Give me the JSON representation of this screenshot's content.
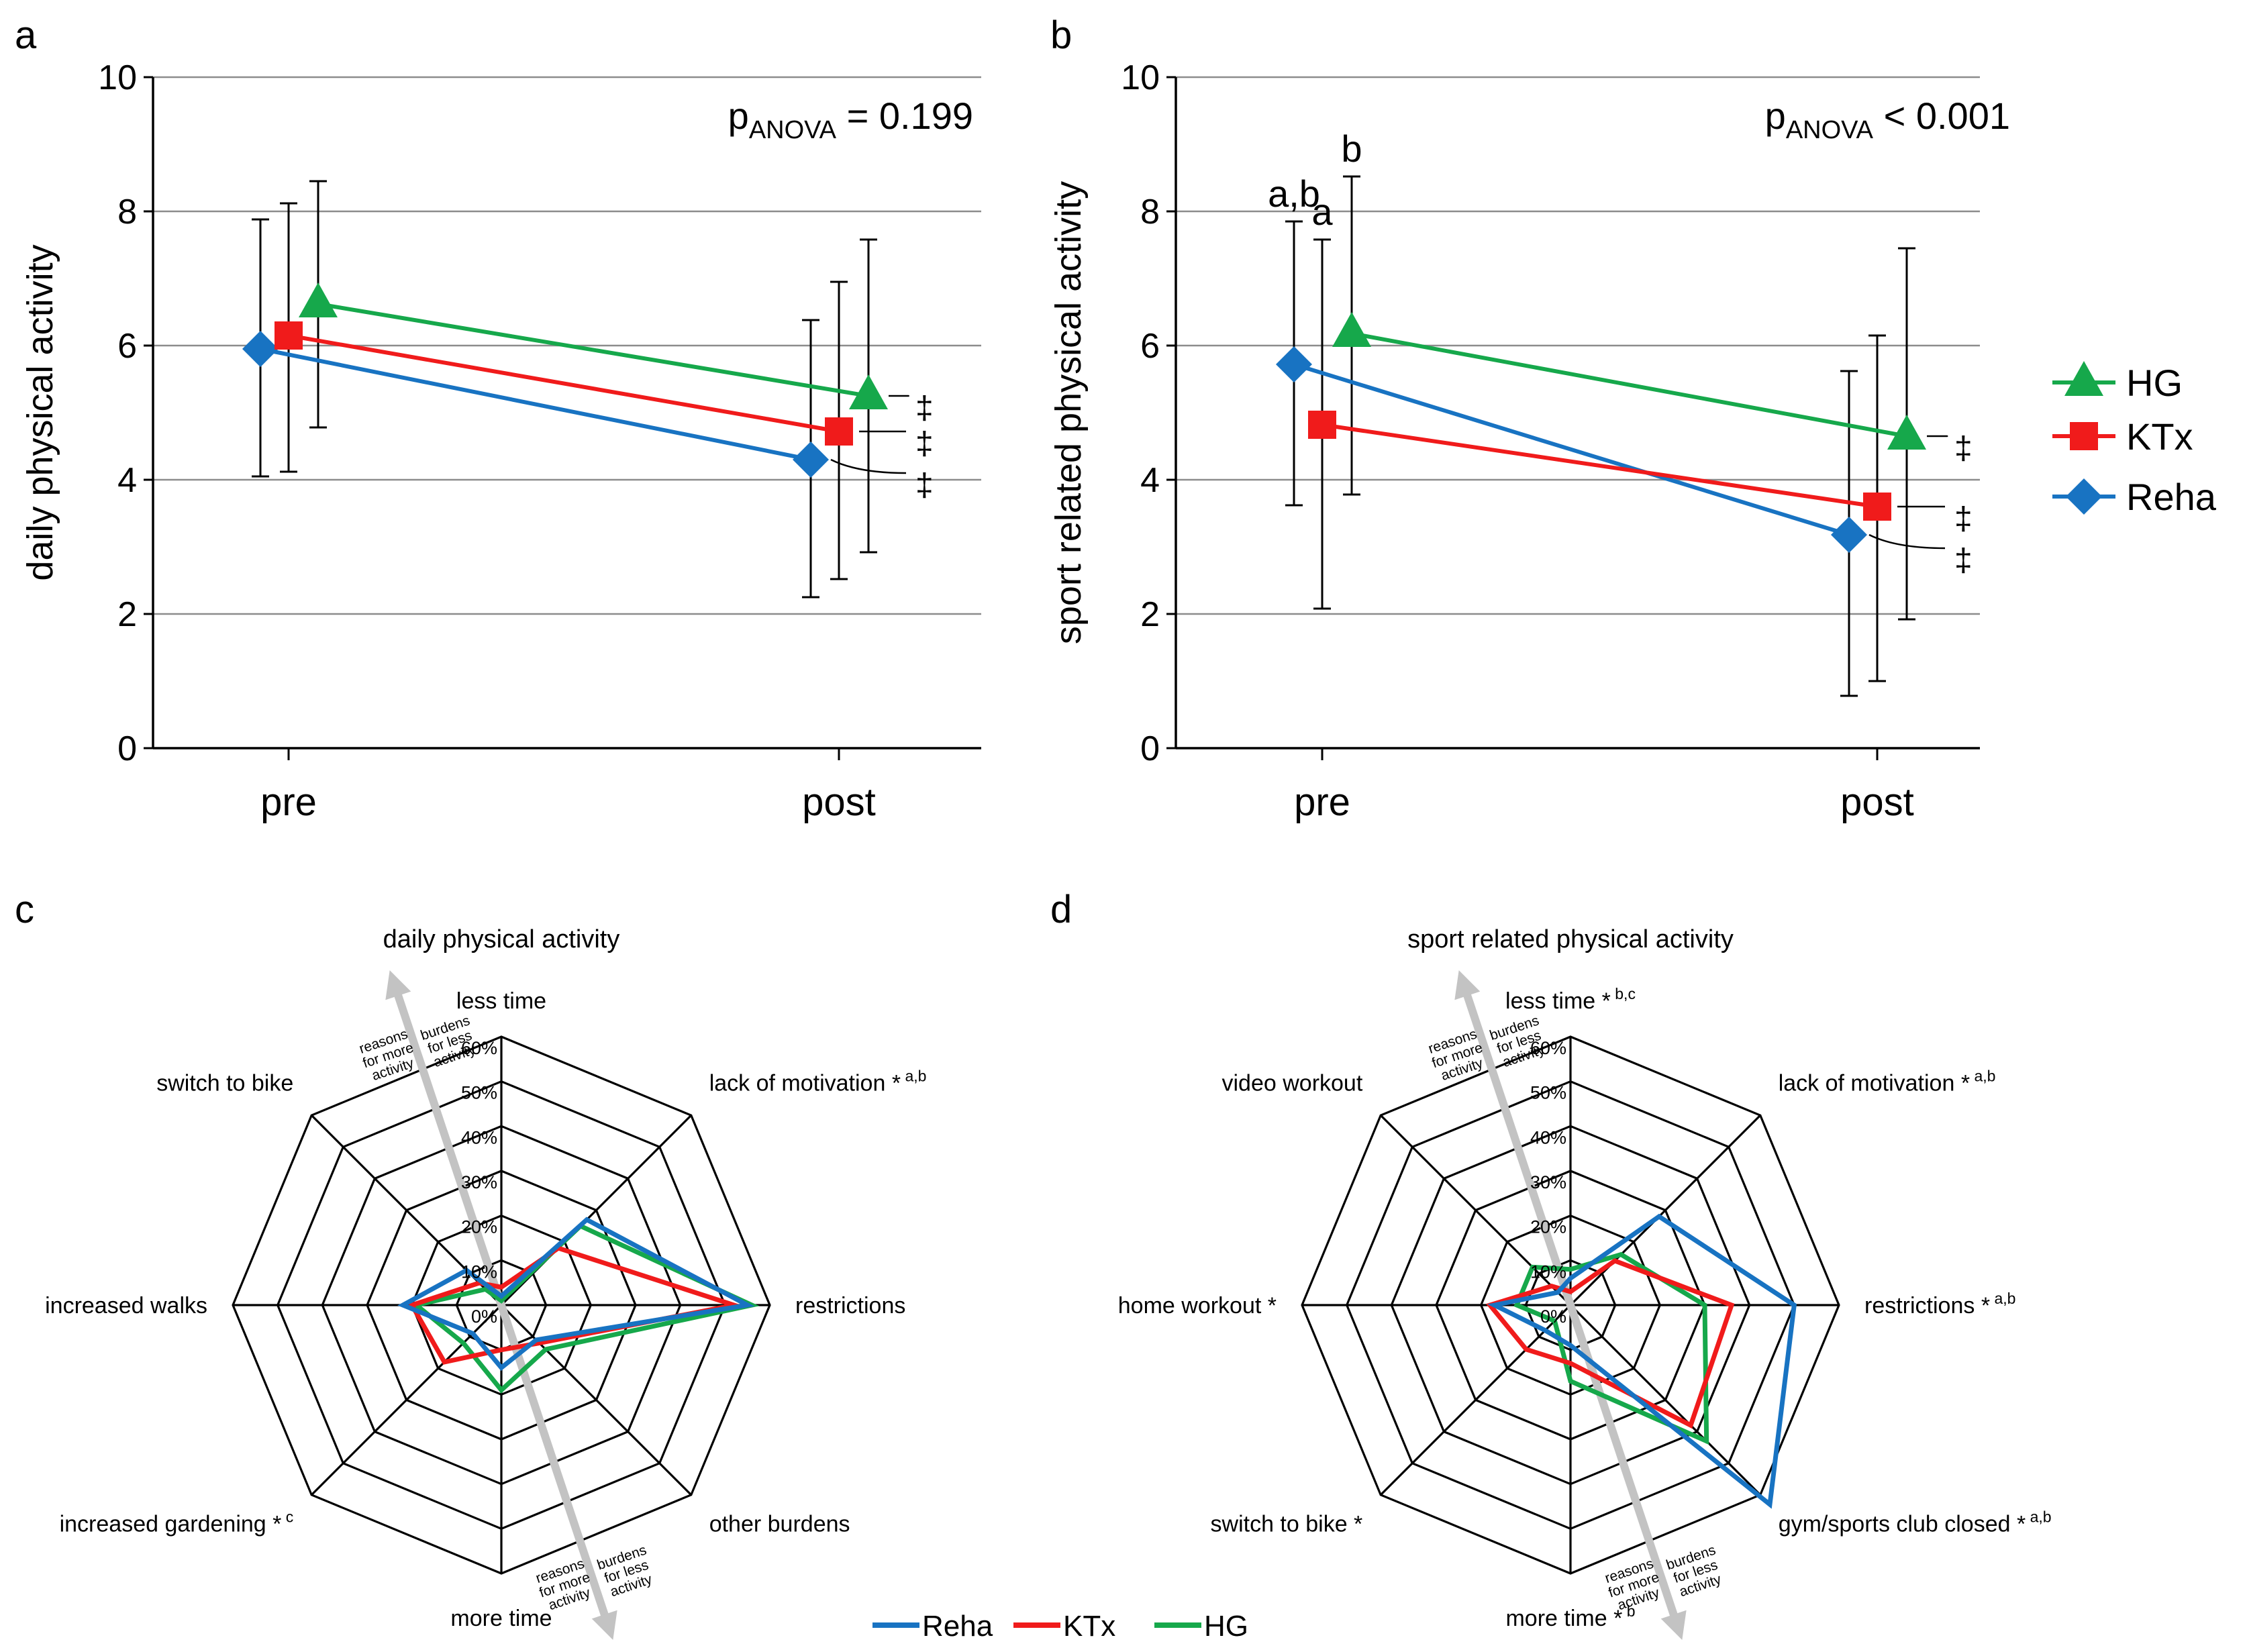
{
  "colors": {
    "HG": "#16a84b",
    "KTx": "#f01b1b",
    "Reha": "#1873c2",
    "grid": "#8c8c8c",
    "arrow": "#c3c3c3"
  },
  "legend_ab": [
    "HG",
    "KTx",
    "Reha"
  ],
  "legend_cd": [
    "Reha",
    "KTx",
    "HG"
  ],
  "chart_data": [
    {
      "panel": "a",
      "type": "line",
      "ylabel": "daily physical activity",
      "ylim": [
        0,
        10
      ],
      "yticks": [
        0,
        2,
        4,
        6,
        8,
        10
      ],
      "categories": [
        "pre",
        "post"
      ],
      "p_prefix": "p",
      "p_sub": "ANOVA",
      "p_rest": " = 0.199",
      "series": [
        {
          "name": "Reha",
          "values": [
            5.95,
            4.3
          ],
          "err_low": [
            4.05,
            2.25
          ],
          "err_high": [
            7.88,
            6.38
          ]
        },
        {
          "name": "KTx",
          "values": [
            6.15,
            4.72
          ],
          "err_low": [
            4.12,
            2.52
          ],
          "err_high": [
            8.12,
            6.95
          ]
        },
        {
          "name": "HG",
          "values": [
            6.62,
            5.25
          ],
          "err_low": [
            4.78,
            2.92
          ],
          "err_high": [
            8.45,
            7.58
          ]
        }
      ],
      "sig_markers": [
        {
          "series": "HG",
          "label": "‡"
        },
        {
          "series": "KTx",
          "label": "‡"
        },
        {
          "series": "Reha",
          "label": "‡"
        }
      ],
      "letters": []
    },
    {
      "panel": "b",
      "type": "line",
      "ylabel": "sport related physical activity",
      "ylim": [
        0,
        10
      ],
      "yticks": [
        0,
        2,
        4,
        6,
        8,
        10
      ],
      "categories": [
        "pre",
        "post"
      ],
      "p_prefix": "p",
      "p_sub": "ANOVA",
      "p_rest": " < 0.001",
      "series": [
        {
          "name": "Reha",
          "values": [
            5.72,
            3.18
          ],
          "err_low": [
            3.62,
            0.78
          ],
          "err_high": [
            7.85,
            5.62
          ]
        },
        {
          "name": "KTx",
          "values": [
            4.82,
            3.6
          ],
          "err_low": [
            2.08,
            1.0
          ],
          "err_high": [
            7.58,
            6.15
          ]
        },
        {
          "name": "HG",
          "values": [
            6.18,
            4.65
          ],
          "err_low": [
            3.78,
            1.92
          ],
          "err_high": [
            8.52,
            7.45
          ]
        }
      ],
      "sig_markers": [
        {
          "series": "HG",
          "label": "‡"
        },
        {
          "series": "KTx",
          "label": "‡"
        },
        {
          "series": "Reha",
          "label": "‡"
        }
      ],
      "letters": [
        {
          "series": "Reha",
          "label": "a,b"
        },
        {
          "series": "KTx",
          "label": "a"
        },
        {
          "series": "HG",
          "label": "b"
        }
      ]
    },
    {
      "panel": "c",
      "type": "radar",
      "title": "daily physical activity",
      "axes": [
        "less time",
        "lack of motivation",
        "restrictions",
        "other burdens",
        "more time",
        "increased gardening",
        "increased walks",
        "switch to bike"
      ],
      "axis_suffix": [
        "",
        " *",
        "",
        "",
        "",
        " *",
        "",
        ""
      ],
      "axis_sup": [
        "",
        "a,b",
        "",
        "",
        "",
        "c",
        "",
        ""
      ],
      "rlim": [
        0,
        60
      ],
      "rticks": [
        "0%",
        "10%",
        "20%",
        "30%",
        "40%",
        "50%",
        "60%"
      ],
      "arrow_top": {
        "left": [
          "reasons",
          "for more",
          "activity"
        ],
        "right": [
          "burdens",
          "for less",
          "activity"
        ]
      },
      "arrow_bottom": {
        "left": [
          "reasons",
          "for more",
          "activity"
        ],
        "right": [
          "burdens",
          "for less",
          "activity"
        ]
      },
      "series": [
        {
          "name": "Reha",
          "values": [
            2,
            27,
            55,
            11,
            14,
            9,
            22,
            11
          ]
        },
        {
          "name": "KTx",
          "values": [
            4,
            18,
            52,
            12,
            10,
            18,
            20,
            7
          ]
        },
        {
          "name": "HG",
          "values": [
            1,
            25,
            56,
            14,
            19,
            12,
            19,
            5
          ]
        }
      ]
    },
    {
      "panel": "d",
      "type": "radar",
      "title": "sport related physical activity",
      "axes": [
        "less time",
        "lack of motivation",
        "restrictions",
        "gym/sports club closed",
        "more time",
        "switch to bike",
        "home workout",
        "video workout"
      ],
      "axis_suffix": [
        " *",
        " *",
        " *",
        " *",
        " *",
        " *",
        " *",
        ""
      ],
      "axis_sup": [
        "b,c",
        "a,b",
        "a,b",
        "a,b",
        "b",
        "",
        "",
        ""
      ],
      "rlim": [
        0,
        60
      ],
      "rticks": [
        "0%",
        "10%",
        "20%",
        "30%",
        "40%",
        "50%",
        "60%"
      ],
      "arrow_top": {
        "left": [
          "reasons",
          "for more",
          "activity"
        ],
        "right": [
          "burdens",
          "for less",
          "activity"
        ]
      },
      "arrow_bottom": {
        "left": [
          "reasons",
          "for more",
          "activity"
        ],
        "right": [
          "burdens",
          "for less",
          "activity"
        ]
      },
      "series": [
        {
          "name": "Reha",
          "values": [
            6,
            28,
            50,
            63,
            9,
            8,
            17,
            4
          ]
        },
        {
          "name": "KTx",
          "values": [
            3,
            14,
            36,
            38,
            13,
            14,
            18,
            6
          ]
        },
        {
          "name": "HG",
          "values": [
            8,
            16,
            30,
            43,
            17,
            5,
            12,
            12
          ]
        }
      ]
    }
  ]
}
